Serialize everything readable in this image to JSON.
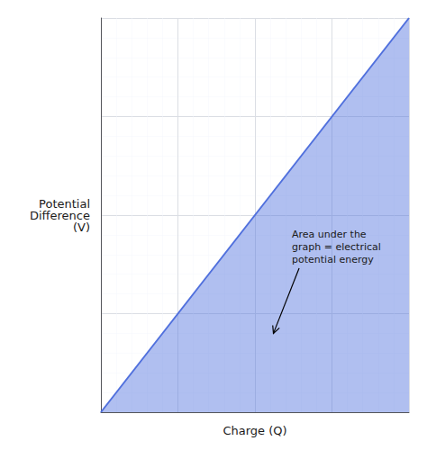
{
  "chart_data": {
    "type": "line",
    "title": "",
    "xlabel": "Charge (Q)",
    "ylabel": "Potential\nDifference\n(V)",
    "x": [
      0,
      1
    ],
    "values": [
      0,
      1
    ],
    "xlim": [
      0,
      1
    ],
    "ylim": [
      0,
      1
    ],
    "xticks": [
      0,
      0.25,
      0.5,
      0.75,
      1
    ],
    "yticks": [
      0,
      0.25,
      0.5,
      0.75,
      1
    ],
    "grid": true,
    "tick_labels": false,
    "annotations": [
      "Area under the\ngraph = electrical\npotential energy"
    ]
  }
}
